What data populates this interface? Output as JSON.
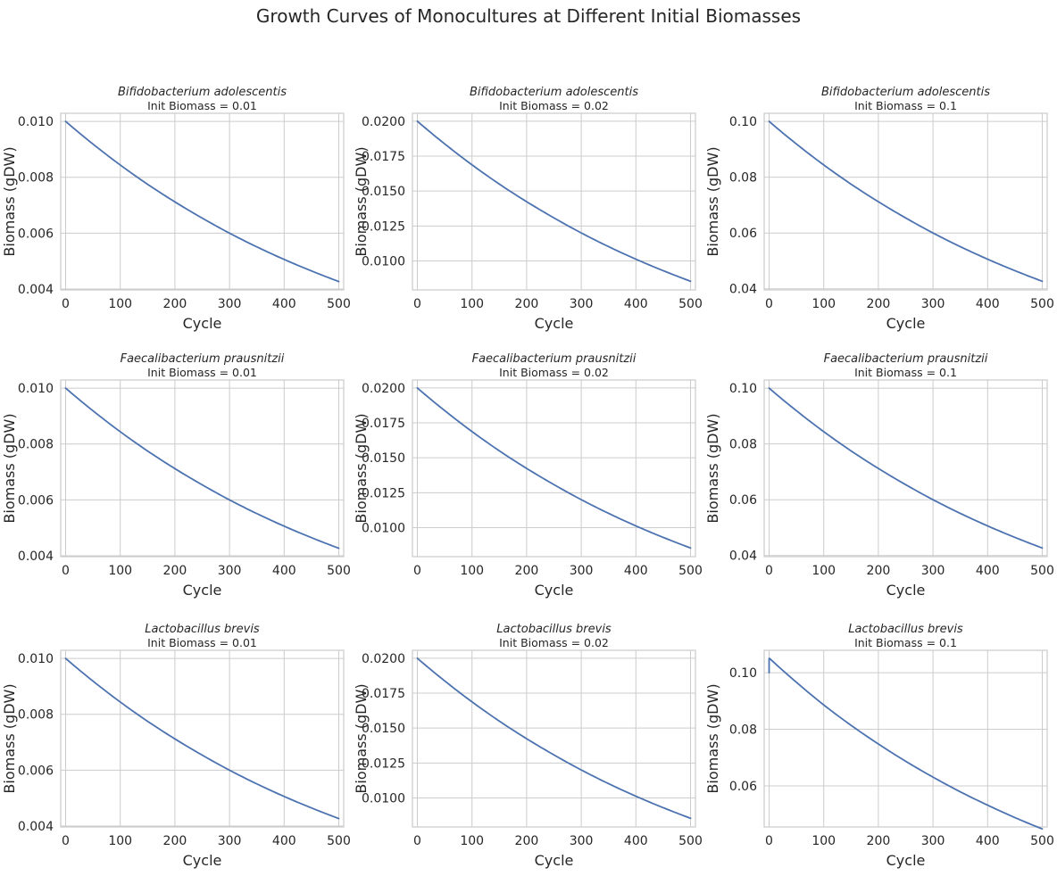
{
  "figure_title": "Growth Curves of Monocultures at Different Initial Biomasses",
  "colors": {
    "series": "#4c72b0",
    "grid": "#cccccc",
    "text": "#262626",
    "background": "#ffffff"
  },
  "chart_data": [
    {
      "type": "line",
      "title": "Bifidobacterium adolescentis",
      "subtitle": "Init Biomass = 0.01",
      "xlabel": "Cycle",
      "ylabel": "Biomass (gDW)",
      "xlim": [
        -9,
        509
      ],
      "ylim": [
        0.00397,
        0.01029
      ],
      "xticks": [
        0,
        100,
        200,
        300,
        400,
        500
      ],
      "yticks": [
        0.004,
        0.006,
        0.008,
        0.01
      ],
      "ytick_labels": [
        "0.004",
        "0.006",
        "0.008",
        "0.010"
      ],
      "grid": true,
      "series": [
        {
          "x": [
            0,
            50,
            100,
            150,
            200,
            250,
            300,
            350,
            400,
            450,
            500
          ],
          "values": [
            0.01,
            0.00919,
            0.00844,
            0.00775,
            0.00712,
            0.00654,
            0.006,
            0.00551,
            0.00506,
            0.00465,
            0.00427
          ]
        }
      ]
    },
    {
      "type": "line",
      "title": "Bifidobacterium adolescentis",
      "subtitle": "Init Biomass = 0.02",
      "xlabel": "Cycle",
      "ylabel": "Biomass (gDW)",
      "xlim": [
        -9,
        509
      ],
      "ylim": [
        0.00792,
        0.02057
      ],
      "xticks": [
        0,
        100,
        200,
        300,
        400,
        500
      ],
      "yticks": [
        0.01,
        0.0125,
        0.015,
        0.0175,
        0.02
      ],
      "ytick_labels": [
        "0.0100",
        "0.0125",
        "0.0150",
        "0.0175",
        "0.0200"
      ],
      "grid": true,
      "series": [
        {
          "x": [
            0,
            50,
            100,
            150,
            200,
            250,
            300,
            350,
            400,
            450,
            500
          ],
          "values": [
            0.02,
            0.01838,
            0.01688,
            0.0155,
            0.01424,
            0.01308,
            0.012,
            0.01102,
            0.01012,
            0.0093,
            0.00854
          ]
        }
      ]
    },
    {
      "type": "line",
      "title": "Bifidobacterium adolescentis",
      "subtitle": "Init Biomass = 0.1",
      "xlabel": "Cycle",
      "ylabel": "Biomass (gDW)",
      "xlim": [
        -9,
        509
      ],
      "ylim": [
        0.0396,
        0.1029
      ],
      "xticks": [
        0,
        100,
        200,
        300,
        400,
        500
      ],
      "yticks": [
        0.04,
        0.06,
        0.08,
        0.1
      ],
      "ytick_labels": [
        "0.04",
        "0.06",
        "0.08",
        "0.10"
      ],
      "grid": true,
      "series": [
        {
          "x": [
            0,
            50,
            100,
            150,
            200,
            250,
            300,
            350,
            400,
            450,
            500
          ],
          "values": [
            0.1,
            0.0919,
            0.0844,
            0.0775,
            0.0712,
            0.0654,
            0.06,
            0.0551,
            0.0506,
            0.0465,
            0.0427
          ]
        }
      ]
    },
    {
      "type": "line",
      "title": "Faecalibacterium prausnitzii",
      "subtitle": "Init Biomass = 0.01",
      "xlabel": "Cycle",
      "ylabel": "Biomass (gDW)",
      "xlim": [
        -9,
        509
      ],
      "ylim": [
        0.00397,
        0.01029
      ],
      "xticks": [
        0,
        100,
        200,
        300,
        400,
        500
      ],
      "yticks": [
        0.004,
        0.006,
        0.008,
        0.01
      ],
      "ytick_labels": [
        "0.004",
        "0.006",
        "0.008",
        "0.010"
      ],
      "grid": true,
      "series": [
        {
          "x": [
            0,
            50,
            100,
            150,
            200,
            250,
            300,
            350,
            400,
            450,
            500
          ],
          "values": [
            0.01,
            0.00919,
            0.00844,
            0.00775,
            0.00712,
            0.00654,
            0.006,
            0.00551,
            0.00506,
            0.00465,
            0.00427
          ]
        }
      ]
    },
    {
      "type": "line",
      "title": "Faecalibacterium prausnitzii",
      "subtitle": "Init Biomass = 0.02",
      "xlabel": "Cycle",
      "ylabel": "Biomass (gDW)",
      "xlim": [
        -9,
        509
      ],
      "ylim": [
        0.00792,
        0.02057
      ],
      "xticks": [
        0,
        100,
        200,
        300,
        400,
        500
      ],
      "yticks": [
        0.01,
        0.0125,
        0.015,
        0.0175,
        0.02
      ],
      "ytick_labels": [
        "0.0100",
        "0.0125",
        "0.0150",
        "0.0175",
        "0.0200"
      ],
      "grid": true,
      "series": [
        {
          "x": [
            0,
            50,
            100,
            150,
            200,
            250,
            300,
            350,
            400,
            450,
            500
          ],
          "values": [
            0.02,
            0.01838,
            0.01688,
            0.0155,
            0.01424,
            0.01308,
            0.012,
            0.01102,
            0.01012,
            0.0093,
            0.00854
          ]
        }
      ]
    },
    {
      "type": "line",
      "title": "Faecalibacterium prausnitzii",
      "subtitle": "Init Biomass = 0.1",
      "xlabel": "Cycle",
      "ylabel": "Biomass (gDW)",
      "xlim": [
        -9,
        509
      ],
      "ylim": [
        0.0396,
        0.1029
      ],
      "xticks": [
        0,
        100,
        200,
        300,
        400,
        500
      ],
      "yticks": [
        0.04,
        0.06,
        0.08,
        0.1
      ],
      "ytick_labels": [
        "0.04",
        "0.06",
        "0.08",
        "0.10"
      ],
      "grid": true,
      "series": [
        {
          "x": [
            0,
            50,
            100,
            150,
            200,
            250,
            300,
            350,
            400,
            450,
            500
          ],
          "values": [
            0.1,
            0.0919,
            0.0844,
            0.0775,
            0.0712,
            0.0654,
            0.06,
            0.0551,
            0.0506,
            0.0465,
            0.0427
          ]
        }
      ]
    },
    {
      "type": "line",
      "title": "Lactobacillus brevis",
      "subtitle": "Init Biomass = 0.01",
      "xlabel": "Cycle",
      "ylabel": "Biomass (gDW)",
      "xlim": [
        -9,
        509
      ],
      "ylim": [
        0.00397,
        0.01029
      ],
      "xticks": [
        0,
        100,
        200,
        300,
        400,
        500
      ],
      "yticks": [
        0.004,
        0.006,
        0.008,
        0.01
      ],
      "ytick_labels": [
        "0.004",
        "0.006",
        "0.008",
        "0.010"
      ],
      "grid": true,
      "series": [
        {
          "x": [
            0,
            50,
            100,
            150,
            200,
            250,
            300,
            350,
            400,
            450,
            500
          ],
          "values": [
            0.01,
            0.00919,
            0.00844,
            0.00775,
            0.00712,
            0.00654,
            0.006,
            0.00551,
            0.00506,
            0.00465,
            0.00427
          ]
        }
      ]
    },
    {
      "type": "line",
      "title": "Lactobacillus brevis",
      "subtitle": "Init Biomass = 0.02",
      "xlabel": "Cycle",
      "ylabel": "Biomass (gDW)",
      "xlim": [
        -9,
        509
      ],
      "ylim": [
        0.00792,
        0.02057
      ],
      "xticks": [
        0,
        100,
        200,
        300,
        400,
        500
      ],
      "yticks": [
        0.01,
        0.0125,
        0.015,
        0.0175,
        0.02
      ],
      "ytick_labels": [
        "0.0100",
        "0.0125",
        "0.0150",
        "0.0175",
        "0.0200"
      ],
      "grid": true,
      "series": [
        {
          "x": [
            0,
            50,
            100,
            150,
            200,
            250,
            300,
            350,
            400,
            450,
            500
          ],
          "values": [
            0.02,
            0.01838,
            0.01688,
            0.0155,
            0.01424,
            0.01308,
            0.012,
            0.01102,
            0.01012,
            0.0093,
            0.00854
          ]
        }
      ]
    },
    {
      "type": "line",
      "title": "Lactobacillus brevis",
      "subtitle": "Init Biomass = 0.1",
      "xlabel": "Cycle",
      "ylabel": "Biomass (gDW)",
      "xlim": [
        -9,
        509
      ],
      "ylim": [
        0.0455,
        0.1079
      ],
      "xticks": [
        0,
        100,
        200,
        300,
        400,
        500
      ],
      "yticks": [
        0.06,
        0.08,
        0.1
      ],
      "ytick_labels": [
        "0.06",
        "0.08",
        "0.10"
      ],
      "grid": true,
      "series": [
        {
          "x": [
            0,
            0,
            1,
            50,
            100,
            150,
            200,
            250,
            300,
            350,
            400,
            450,
            500
          ],
          "values": [
            0.1,
            0.105,
            0.105,
            0.0966,
            0.0886,
            0.0814,
            0.0748,
            0.0687,
            0.0631,
            0.0579,
            0.0532,
            0.0488,
            0.0448
          ]
        }
      ]
    }
  ]
}
